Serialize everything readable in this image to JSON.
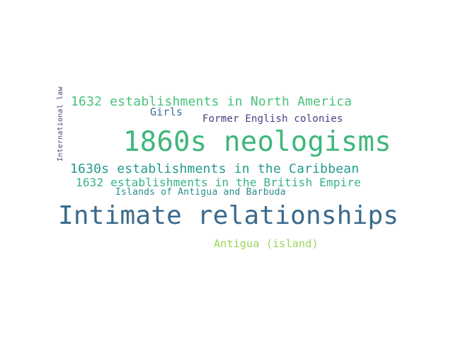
{
  "words": [
    {
      "text": "1860s neologisms",
      "color": "#3fb77b"
    },
    {
      "text": "Intimate relationships",
      "color": "#3b6a8c"
    },
    {
      "text": "1632 establishments in North America",
      "color": "#48c27a"
    },
    {
      "text": "1630s establishments in the Caribbean",
      "color": "#259a8e"
    },
    {
      "text": "1632 establishments in the British Empire",
      "color": "#34b387"
    },
    {
      "text": "Antigua (island)",
      "color": "#9bd556"
    },
    {
      "text": "Girls",
      "color": "#3d6f90"
    },
    {
      "text": "Former English colonies",
      "color": "#4a3b82"
    },
    {
      "text": "Islands of Antigua and Barbuda",
      "color": "#2c8e8c"
    },
    {
      "text": "International law",
      "color": "#4e3a86"
    }
  ]
}
